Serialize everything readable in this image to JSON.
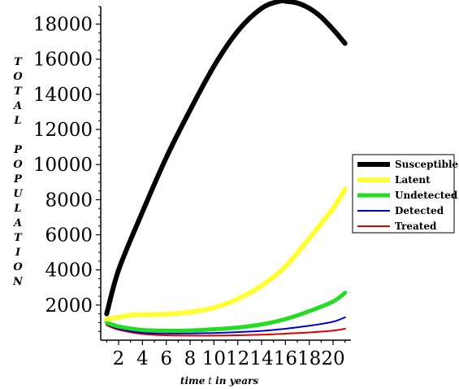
{
  "chart_data": {
    "type": "line",
    "xlabel_parts": [
      "time",
      "t",
      "in",
      "years"
    ],
    "ylabel_letters": [
      "T",
      "O",
      "T",
      "A",
      "L",
      "",
      "P",
      "O",
      "P",
      "U",
      "L",
      "A",
      "T",
      "I",
      "O",
      "N"
    ],
    "xlim": [
      0.5,
      21.5
    ],
    "ylim": [
      0,
      19000
    ],
    "xticks": [
      2,
      4,
      6,
      8,
      10,
      12,
      14,
      16,
      18,
      20
    ],
    "yticks": [
      2000,
      4000,
      6000,
      8000,
      10000,
      12000,
      14000,
      16000,
      18000
    ],
    "grid": false,
    "legend_position": "right",
    "series": [
      {
        "name": "Susceptible",
        "color": "#000000",
        "width": 6,
        "x": [
          1,
          2,
          4,
          6,
          8,
          10,
          12,
          14,
          15.5,
          16,
          17,
          18,
          19,
          20,
          21
        ],
        "y": [
          1500,
          4000,
          7300,
          10400,
          13100,
          15600,
          17600,
          18900,
          19300,
          19300,
          19200,
          18900,
          18400,
          17700,
          16900
        ]
      },
      {
        "name": "Latent",
        "color": "#ffff33",
        "width": 6,
        "x": [
          1,
          2,
          3,
          4,
          6,
          8,
          10,
          12,
          14,
          16,
          18,
          20,
          21
        ],
        "y": [
          1200,
          1300,
          1420,
          1450,
          1480,
          1600,
          1850,
          2350,
          3100,
          4200,
          5800,
          7500,
          8600
        ]
      },
      {
        "name": "Undetected",
        "color": "#22dd22",
        "width": 5,
        "x": [
          1,
          2,
          4,
          6,
          8,
          10,
          12,
          14,
          16,
          18,
          20,
          21
        ],
        "y": [
          1000,
          780,
          580,
          540,
          550,
          620,
          720,
          900,
          1200,
          1650,
          2200,
          2700
        ]
      },
      {
        "name": "Detected",
        "color": "#0000cc",
        "width": 2,
        "x": [
          1,
          2,
          4,
          6,
          8,
          10,
          12,
          14,
          16,
          18,
          20,
          21
        ],
        "y": [
          900,
          650,
          420,
          380,
          380,
          410,
          460,
          530,
          650,
          820,
          1050,
          1300
        ]
      },
      {
        "name": "Treated",
        "color": "#dd0000",
        "width": 2,
        "x": [
          1,
          2,
          4,
          6,
          8,
          10,
          12,
          14,
          16,
          18,
          20,
          21
        ],
        "y": [
          850,
          600,
          350,
          280,
          260,
          260,
          280,
          310,
          370,
          440,
          540,
          650
        ]
      }
    ]
  }
}
